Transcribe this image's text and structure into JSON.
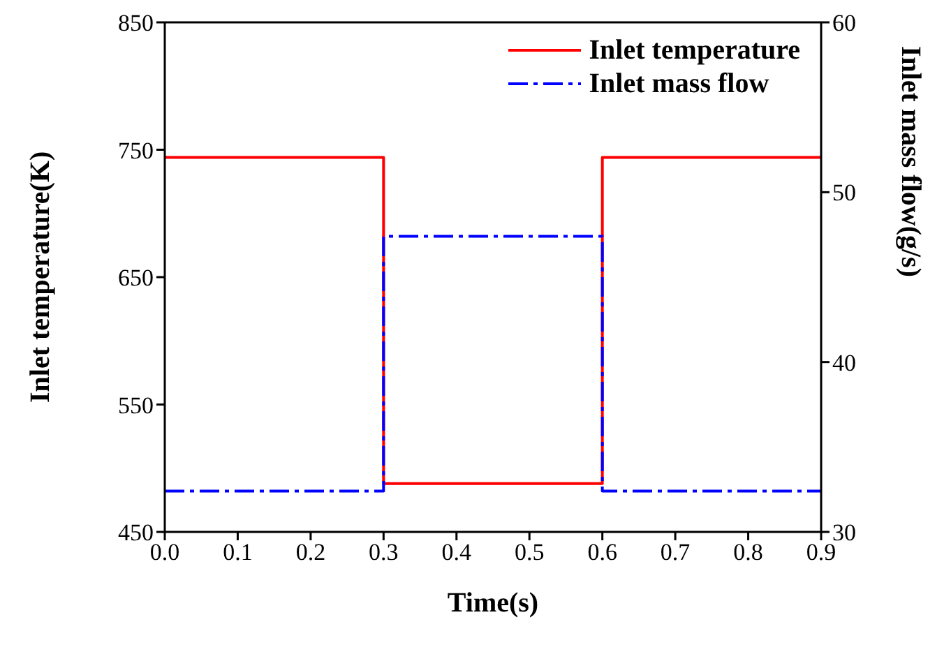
{
  "chart_data": {
    "type": "line",
    "xlabel": "Time(s)",
    "ylabel": "Inlet temperature(K)",
    "y2label": "Inlet mass flow(g/s)",
    "xlim": [
      0,
      0.9
    ],
    "xticks": [
      {
        "value": 0,
        "label": "0.0"
      },
      {
        "value": 0.1,
        "label": "0.1"
      },
      {
        "value": 0.2,
        "label": "0.2"
      },
      {
        "value": 0.3,
        "label": "0.3"
      },
      {
        "value": 0.4,
        "label": "0.4"
      },
      {
        "value": 0.5,
        "label": "0.5"
      },
      {
        "value": 0.6,
        "label": "0.6"
      },
      {
        "value": 0.7,
        "label": "0.7"
      },
      {
        "value": 0.8,
        "label": "0.8"
      },
      {
        "value": 0.9,
        "label": "0.9"
      }
    ],
    "ylim": [
      450,
      850
    ],
    "yticks": [
      450,
      550,
      650,
      750,
      850
    ],
    "y2lim": [
      30,
      60
    ],
    "y2ticks": [
      30,
      40,
      50,
      60
    ],
    "legend": "top right",
    "grid": false,
    "marker": "none",
    "series": [
      {
        "name": "Inlet temperature",
        "color": "#ff0000",
        "line_style": "solid",
        "x": [
          0,
          0.3,
          0.3,
          0.6,
          0.6,
          0.9
        ],
        "values": [
          744,
          744,
          488,
          488,
          744,
          744
        ]
      },
      {
        "name": "Inlet mass flow",
        "color": "#0000ff",
        "line_style": "dashed",
        "axis": "y2",
        "x": [
          0,
          0.3,
          0.3,
          0.6,
          0.6,
          0.9
        ],
        "values": [
          32.4,
          32.4,
          47.4,
          47.4,
          32.4,
          32.4
        ]
      }
    ]
  }
}
